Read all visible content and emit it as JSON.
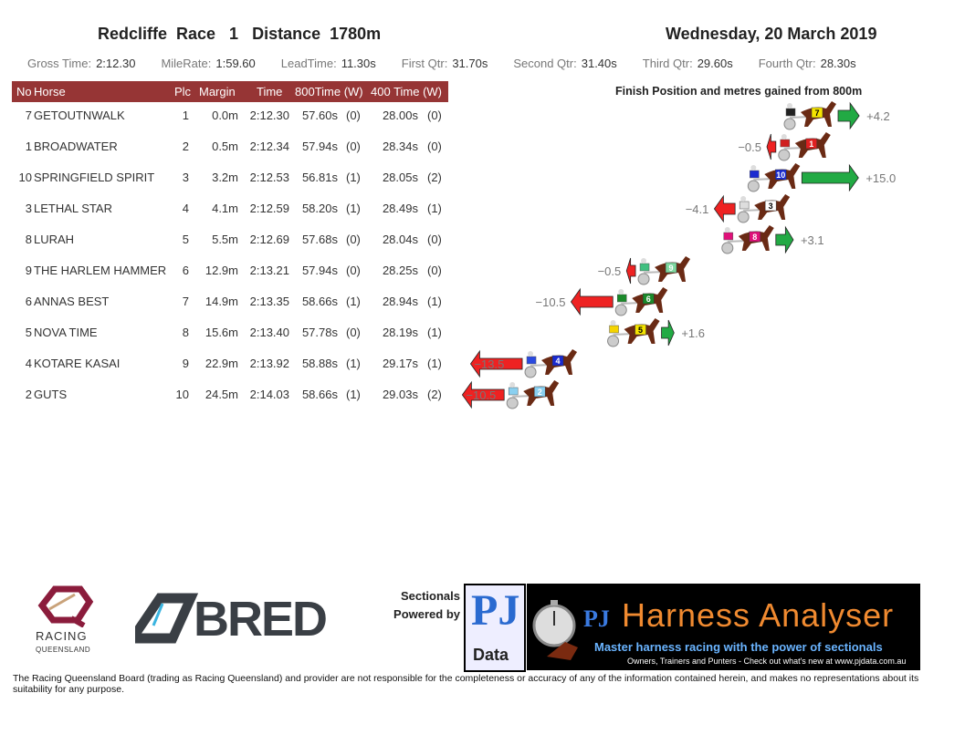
{
  "header": {
    "race_title": "Redcliffe  Race   1   Distance  1780m",
    "date": "Wednesday, 20 March 2019"
  },
  "stats": [
    {
      "label": "Gross Time:",
      "value": "2:12.30"
    },
    {
      "label": "MileRate:",
      "value": "1:59.60"
    },
    {
      "label": "LeadTime:",
      "value": "11.30s"
    },
    {
      "label": "First Qtr:",
      "value": "31.70s"
    },
    {
      "label": "Second Qtr:",
      "value": "31.40s"
    },
    {
      "label": "Third Qtr:",
      "value": "29.60s"
    },
    {
      "label": "Fourth Qtr:",
      "value": "28.30s"
    }
  ],
  "table": {
    "headers": {
      "no": "No",
      "horse": "Horse",
      "plc": "Plc",
      "margin": "Margin",
      "time": "Time",
      "t800": "800Time (W)",
      "t400": "400 Time (W)"
    },
    "rows": [
      {
        "no": "7",
        "horse": "GETOUTNWALK",
        "plc": "1",
        "margin": "0.0m",
        "time": "2:12.30",
        "t800": "57.60s",
        "w800": "(0)",
        "t400": "28.00s",
        "w400": "(0)"
      },
      {
        "no": "1",
        "horse": "BROADWATER",
        "plc": "2",
        "margin": "0.5m",
        "time": "2:12.34",
        "t800": "57.94s",
        "w800": "(0)",
        "t400": "28.34s",
        "w400": "(0)"
      },
      {
        "no": "10",
        "horse": "SPRINGFIELD SPIRIT",
        "plc": "3",
        "margin": "3.2m",
        "time": "2:12.53",
        "t800": "56.81s",
        "w800": "(1)",
        "t400": "28.05s",
        "w400": "(2)"
      },
      {
        "no": "3",
        "horse": "LETHAL STAR",
        "plc": "4",
        "margin": "4.1m",
        "time": "2:12.59",
        "t800": "58.20s",
        "w800": "(1)",
        "t400": "28.49s",
        "w400": "(1)"
      },
      {
        "no": "8",
        "horse": "LURAH",
        "plc": "5",
        "margin": "5.5m",
        "time": "2:12.69",
        "t800": "57.68s",
        "w800": "(0)",
        "t400": "28.04s",
        "w400": "(0)"
      },
      {
        "no": "9",
        "horse": "THE HARLEM HAMMER",
        "plc": "6",
        "margin": "12.9m",
        "time": "2:13.21",
        "t800": "57.94s",
        "w800": "(0)",
        "t400": "28.25s",
        "w400": "(0)"
      },
      {
        "no": "6",
        "horse": "ANNAS BEST",
        "plc": "7",
        "margin": "14.9m",
        "time": "2:13.35",
        "t800": "58.66s",
        "w800": "(1)",
        "t400": "28.94s",
        "w400": "(1)"
      },
      {
        "no": "5",
        "horse": "NOVA TIME",
        "plc": "8",
        "margin": "15.6m",
        "time": "2:13.40",
        "t800": "57.78s",
        "w800": "(0)",
        "t400": "28.19s",
        "w400": "(1)"
      },
      {
        "no": "4",
        "horse": "KOTARE KASAI",
        "plc": "9",
        "margin": "22.9m",
        "time": "2:13.92",
        "t800": "58.88s",
        "w800": "(1)",
        "t400": "29.17s",
        "w400": "(1)"
      },
      {
        "no": "2",
        "horse": "GUTS",
        "plc": "10",
        "margin": "24.5m",
        "time": "2:14.03",
        "t800": "58.66s",
        "w800": "(1)",
        "t400": "29.03s",
        "w400": "(2)"
      }
    ]
  },
  "chart": {
    "title": "Finish Position and metres gained from 800m",
    "items": [
      {
        "no": "7",
        "gain": 4.2,
        "label": "+4.2",
        "silk": "#f5e400",
        "jockey": "#222"
      },
      {
        "no": "1",
        "gain": -0.5,
        "label": "−0.5",
        "silk": "#e02020",
        "jockey": "#d02020"
      },
      {
        "no": "10",
        "gain": 15.0,
        "label": "+15.0",
        "silk": "#1a2ad0",
        "jockey": "#1a2ad0"
      },
      {
        "no": "3",
        "gain": -4.1,
        "label": "−4.1",
        "silk": "#ffffff",
        "jockey": "#ddd"
      },
      {
        "no": "8",
        "gain": 3.1,
        "label": "+3.1",
        "silk": "#e0107a",
        "jockey": "#e0107a"
      },
      {
        "no": "9",
        "gain": -0.5,
        "label": "−0.5",
        "silk": "#7fd8a0",
        "jockey": "#40c080"
      },
      {
        "no": "6",
        "gain": -10.5,
        "label": "−10.5",
        "silk": "#1a8a2a",
        "jockey": "#1a8a2a"
      },
      {
        "no": "5",
        "gain": 1.6,
        "label": "+1.6",
        "silk": "#f5e400",
        "jockey": "#f5d400"
      },
      {
        "no": "4",
        "gain": -13.5,
        "label": "−13.5",
        "silk": "#1a2ad0",
        "jockey": "#2a4ae0"
      },
      {
        "no": "2",
        "gain": -10.5,
        "label": "−10.5",
        "silk": "#8ad0f0",
        "jockey": "#8ad0f0"
      }
    ],
    "colors": {
      "gain": "#22aa44",
      "loss": "#ee2222"
    }
  },
  "footer": {
    "sectionals": "Sectionals",
    "powered_by": "Powered by",
    "rq_line1": "RACING",
    "rq_line2": "QUEENSLAND",
    "bred": "BRED",
    "pj": "PJ",
    "pj_data": "Data",
    "analyser_title": "Harness Analyser",
    "tagline": "Master harness racing with the power of sectionals",
    "subline": "Owners, Trainers and Punters - Check out what's new at www.pjdata.com.au",
    "disclaimer": "The Racing Queensland Board (trading as Racing Queensland) and provider are not responsible for the completeness or accuracy of any of the information contained herein, and makes no representations about its suitability for any purpose."
  }
}
